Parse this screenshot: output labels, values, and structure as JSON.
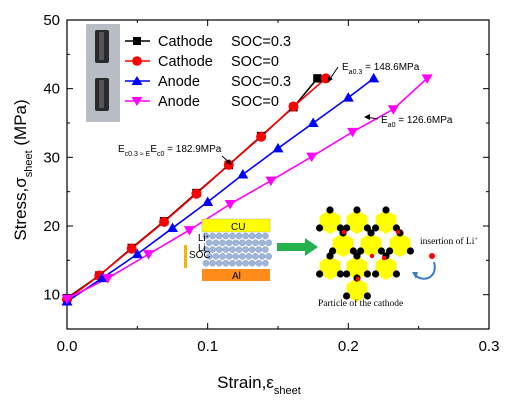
{
  "chart_data": {
    "type": "line",
    "xlabel": "Strain,ε",
    "xlabel_sub": "sheet",
    "ylabel": "Stress,σ",
    "ylabel_sub": "sheet",
    "ylabel_unit": " (MPa)",
    "xlim": [
      0.0,
      0.3
    ],
    "ylim": [
      5,
      50
    ],
    "xticks": [
      "0.0",
      "0.1",
      "0.2",
      "0.3"
    ],
    "xtick_values": [
      0.0,
      0.1,
      0.2,
      0.3
    ],
    "yticks": [
      "10",
      "20",
      "30",
      "40",
      "50"
    ],
    "ytick_values": [
      10,
      20,
      30,
      40,
      50
    ],
    "grid": false,
    "legend_position": "top-left",
    "series": [
      {
        "name": "Cathode SOC=0.3",
        "label_a": "Cathode",
        "label_b": "SOC=0.3",
        "color": "#000000",
        "marker": "square",
        "x": [
          0.0,
          0.023,
          0.046,
          0.069,
          0.092,
          0.115,
          0.138,
          0.161,
          0.178
        ],
        "y": [
          9.5,
          12.8,
          16.8,
          20.7,
          24.8,
          28.9,
          33.1,
          37.3,
          41.5
        ]
      },
      {
        "name": "Cathode SOC=0",
        "label_a": "Cathode",
        "label_b": "SOC=0",
        "color": "#ff0000",
        "marker": "circle",
        "x": [
          0.0,
          0.023,
          0.046,
          0.069,
          0.092,
          0.115,
          0.138,
          0.161,
          0.184
        ],
        "y": [
          9.3,
          12.8,
          16.7,
          20.6,
          24.7,
          28.9,
          33.0,
          37.4,
          41.5
        ]
      },
      {
        "name": "Anode SOC=0.3",
        "label_a": "Anode",
        "label_b": "SOC=0.3",
        "color": "#0000ff",
        "marker": "triangle-up",
        "x": [
          0.0,
          0.025,
          0.05,
          0.075,
          0.1,
          0.125,
          0.15,
          0.175,
          0.2,
          0.218
        ],
        "y": [
          9.0,
          12.4,
          15.9,
          19.7,
          23.5,
          27.5,
          31.3,
          35.0,
          38.7,
          41.5
        ]
      },
      {
        "name": "Anode SOC=0",
        "label_a": "Anode",
        "label_b": "SOC=0",
        "color": "#ff00ff",
        "marker": "triangle-down",
        "x": [
          0.0,
          0.029,
          0.058,
          0.087,
          0.116,
          0.145,
          0.174,
          0.203,
          0.232,
          0.256
        ],
        "y": [
          9.4,
          12.4,
          15.9,
          19.4,
          23.2,
          26.6,
          30.1,
          33.7,
          37.0,
          41.5
        ]
      }
    ],
    "annotations": {
      "cathode_modulus": "E",
      "cathode_modulus_rest": "c0.3 ≈ E",
      "cathode_modulus_sub2": "c0",
      "cathode_modulus_val": " = 182.9MPa",
      "anode03_E": "E",
      "anode03_sub": "a0.3",
      "anode03_val": " = 148.6MPa",
      "anode0_E": "E",
      "anode0_sub": "a0",
      "anode0_val": " = 126.6MPa"
    },
    "inset": {
      "cu_label": "CU",
      "al_label": "Al",
      "soc_label": "SOC",
      "li_label": "Li",
      "li_sup": "+",
      "li_sub": "Li",
      "particle_label": "Particle of the cathode",
      "insertion_label": "insertion of Li",
      "insertion_sup": "+",
      "colors": {
        "cu": "#ffff00",
        "al": "#ff8c1a",
        "sphere": "#9fb6d9",
        "arrow": "#22b14c",
        "lattice": "#ffff00",
        "dot": "#000000",
        "red_dot": "#ff0000",
        "curve": "#3b7fc4"
      }
    }
  }
}
